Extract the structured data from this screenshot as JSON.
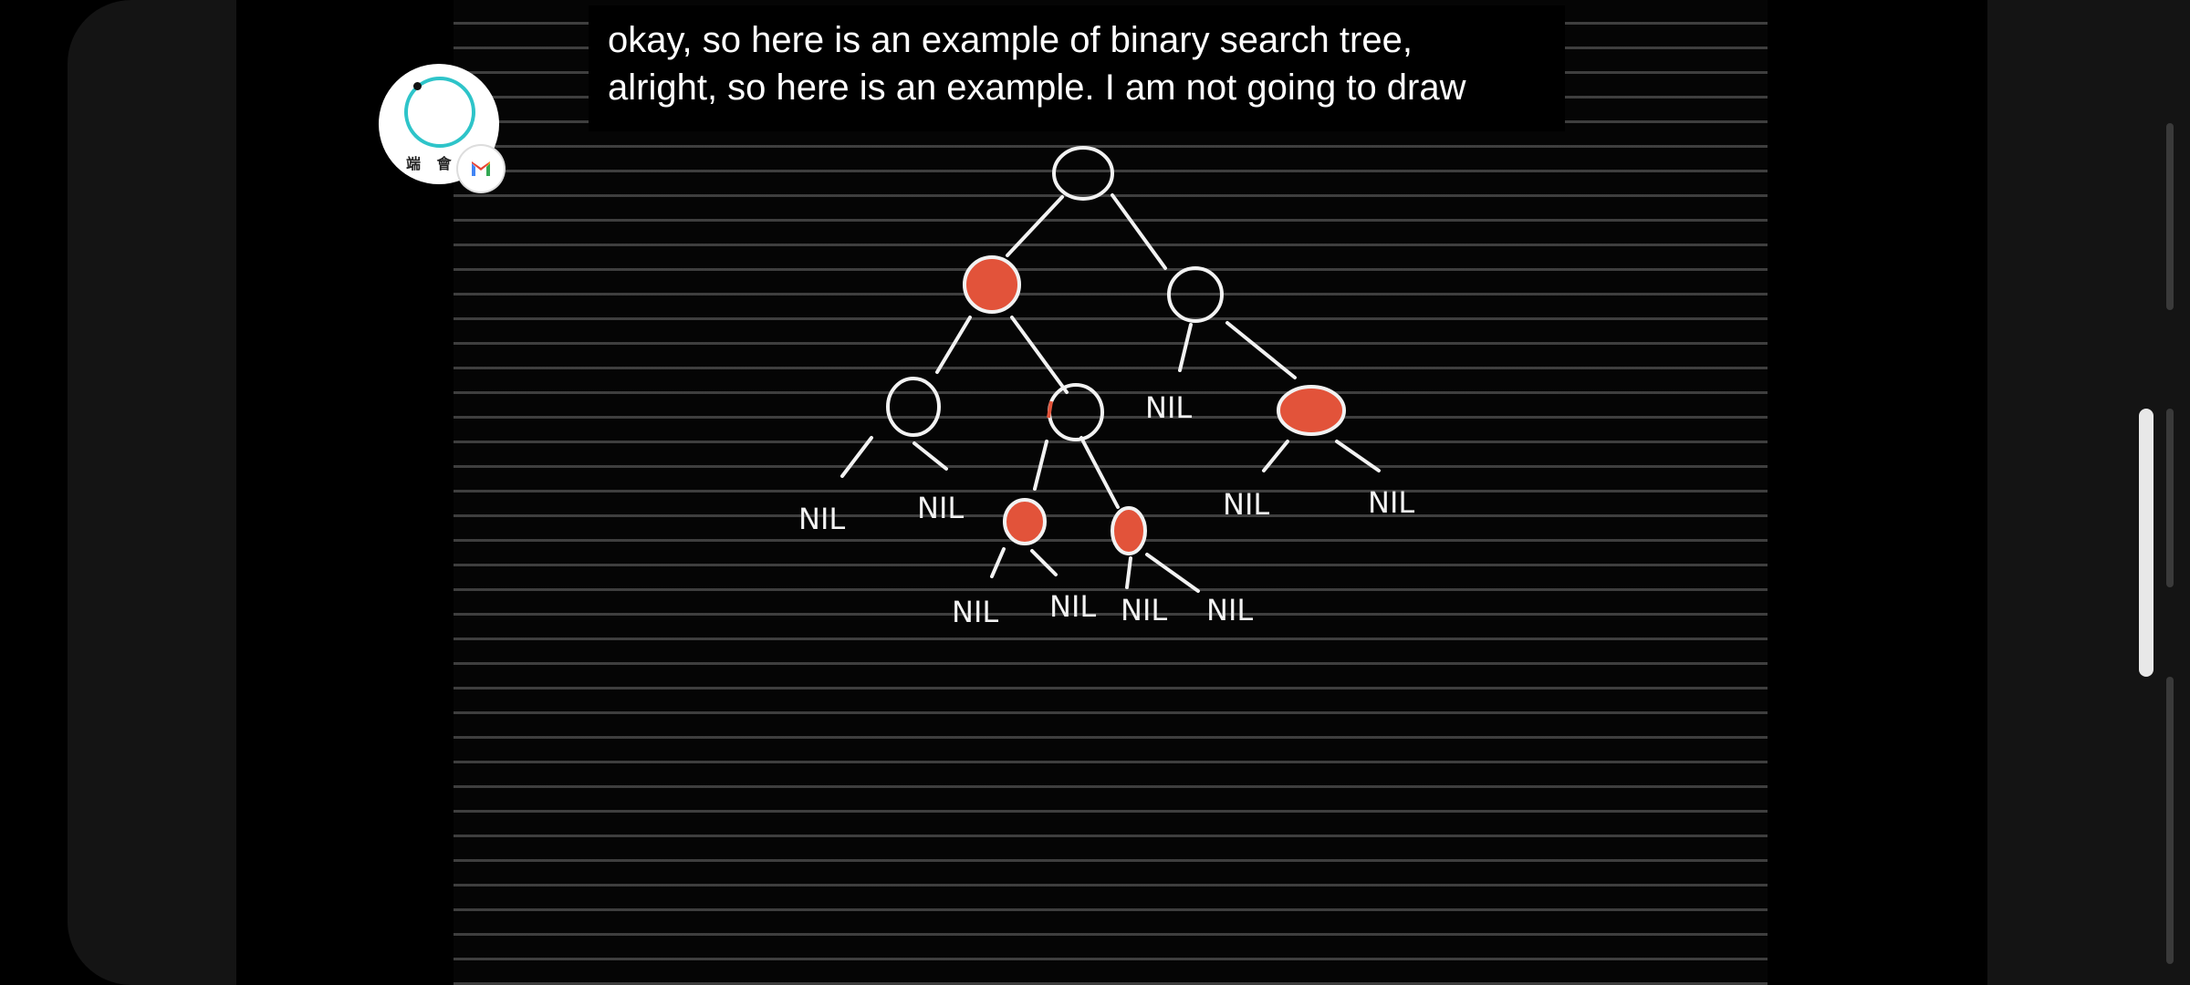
{
  "caption": {
    "lines": [
      "okay, so here is an example of binary search tree,",
      "alright, so here is an example. I am not going to draw"
    ]
  },
  "tree": {
    "nil_label": "NIL",
    "colors": {
      "stroke": "#f2f2f2",
      "red_fill": "#e2533a"
    }
  },
  "bubble": {
    "text": "端 會",
    "ring_color": "#2ec4c9",
    "icon": "assistant-bubble-icon"
  },
  "badge": {
    "icon": "gmail-icon"
  }
}
